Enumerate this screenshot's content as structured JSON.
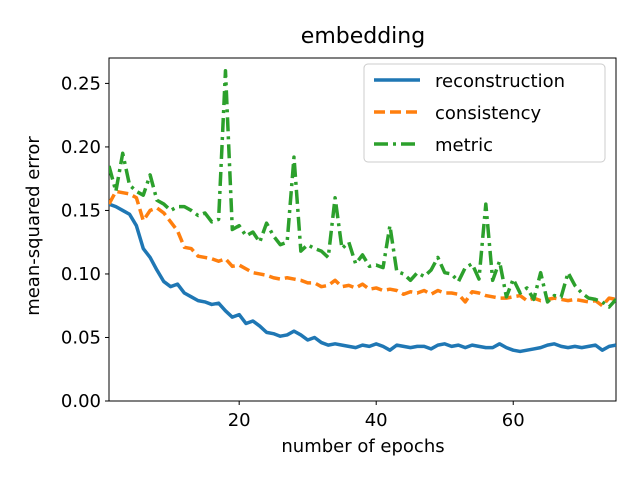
{
  "chart_data": {
    "type": "line",
    "title": "embedding",
    "xlabel": "number of epochs",
    "ylabel": "mean-squared error",
    "xlim": [
      1,
      75
    ],
    "ylim": [
      0.0,
      0.27
    ],
    "xticks": [
      20,
      40,
      60
    ],
    "xtick_labels": [
      "20",
      "40",
      "60"
    ],
    "yticks": [
      0.0,
      0.05,
      0.1,
      0.15,
      0.2,
      0.25
    ],
    "ytick_labels": [
      "0.00",
      "0.05",
      "0.10",
      "0.15",
      "0.20",
      "0.25"
    ],
    "legend_position": "top-right",
    "grid": false,
    "x": [
      1,
      2,
      3,
      4,
      5,
      6,
      7,
      8,
      9,
      10,
      11,
      12,
      13,
      14,
      15,
      16,
      17,
      18,
      19,
      20,
      21,
      22,
      23,
      24,
      25,
      26,
      27,
      28,
      29,
      30,
      31,
      32,
      33,
      34,
      35,
      36,
      37,
      38,
      39,
      40,
      41,
      42,
      43,
      44,
      45,
      46,
      47,
      48,
      49,
      50,
      51,
      52,
      53,
      54,
      55,
      56,
      57,
      58,
      59,
      60,
      61,
      62,
      63,
      64,
      65,
      66,
      67,
      68,
      69,
      70,
      71,
      72,
      73,
      74,
      75
    ],
    "series": [
      {
        "name": "reconstruction",
        "color": "#1f77b4",
        "dash": "solid",
        "values": [
          0.155,
          0.153,
          0.15,
          0.147,
          0.138,
          0.12,
          0.113,
          0.103,
          0.094,
          0.09,
          0.092,
          0.085,
          0.082,
          0.079,
          0.078,
          0.076,
          0.077,
          0.071,
          0.066,
          0.068,
          0.061,
          0.063,
          0.059,
          0.054,
          0.053,
          0.051,
          0.052,
          0.055,
          0.052,
          0.048,
          0.05,
          0.046,
          0.044,
          0.045,
          0.044,
          0.043,
          0.042,
          0.044,
          0.043,
          0.045,
          0.043,
          0.04,
          0.044,
          0.043,
          0.042,
          0.043,
          0.043,
          0.041,
          0.044,
          0.045,
          0.043,
          0.044,
          0.042,
          0.044,
          0.043,
          0.042,
          0.042,
          0.045,
          0.042,
          0.04,
          0.039,
          0.04,
          0.041,
          0.042,
          0.044,
          0.045,
          0.043,
          0.042,
          0.043,
          0.042,
          0.043,
          0.044,
          0.04,
          0.043,
          0.044
        ]
      },
      {
        "name": "consistency",
        "color": "#ff7f0e",
        "dash": "dashed",
        "values": [
          0.155,
          0.165,
          0.164,
          0.163,
          0.16,
          0.142,
          0.15,
          0.152,
          0.148,
          0.141,
          0.134,
          0.121,
          0.12,
          0.114,
          0.113,
          0.112,
          0.11,
          0.112,
          0.106,
          0.107,
          0.104,
          0.101,
          0.1,
          0.099,
          0.097,
          0.096,
          0.097,
          0.096,
          0.095,
          0.093,
          0.093,
          0.09,
          0.091,
          0.095,
          0.09,
          0.091,
          0.089,
          0.092,
          0.088,
          0.089,
          0.087,
          0.088,
          0.087,
          0.084,
          0.086,
          0.085,
          0.087,
          0.084,
          0.087,
          0.085,
          0.085,
          0.084,
          0.078,
          0.086,
          0.085,
          0.083,
          0.082,
          0.081,
          0.081,
          0.082,
          0.083,
          0.079,
          0.081,
          0.079,
          0.08,
          0.081,
          0.08,
          0.079,
          0.08,
          0.079,
          0.078,
          0.079,
          0.075,
          0.081,
          0.08
        ]
      },
      {
        "name": "metric",
        "color": "#2ca02c",
        "dash": "dashdot",
        "values": [
          0.185,
          0.165,
          0.195,
          0.17,
          0.165,
          0.162,
          0.178,
          0.158,
          0.155,
          0.15,
          0.153,
          0.153,
          0.15,
          0.146,
          0.148,
          0.141,
          0.143,
          0.26,
          0.135,
          0.138,
          0.13,
          0.133,
          0.125,
          0.14,
          0.13,
          0.123,
          0.125,
          0.192,
          0.118,
          0.123,
          0.12,
          0.118,
          0.113,
          0.16,
          0.12,
          0.125,
          0.108,
          0.115,
          0.106,
          0.107,
          0.105,
          0.138,
          0.102,
          0.1,
          0.095,
          0.101,
          0.098,
          0.103,
          0.113,
          0.101,
          0.1,
          0.094,
          0.105,
          0.108,
          0.096,
          0.155,
          0.095,
          0.11,
          0.082,
          0.096,
          0.085,
          0.089,
          0.08,
          0.101,
          0.078,
          0.083,
          0.082,
          0.101,
          0.091,
          0.085,
          0.081,
          0.08,
          0.078,
          0.074,
          0.08
        ]
      }
    ]
  }
}
